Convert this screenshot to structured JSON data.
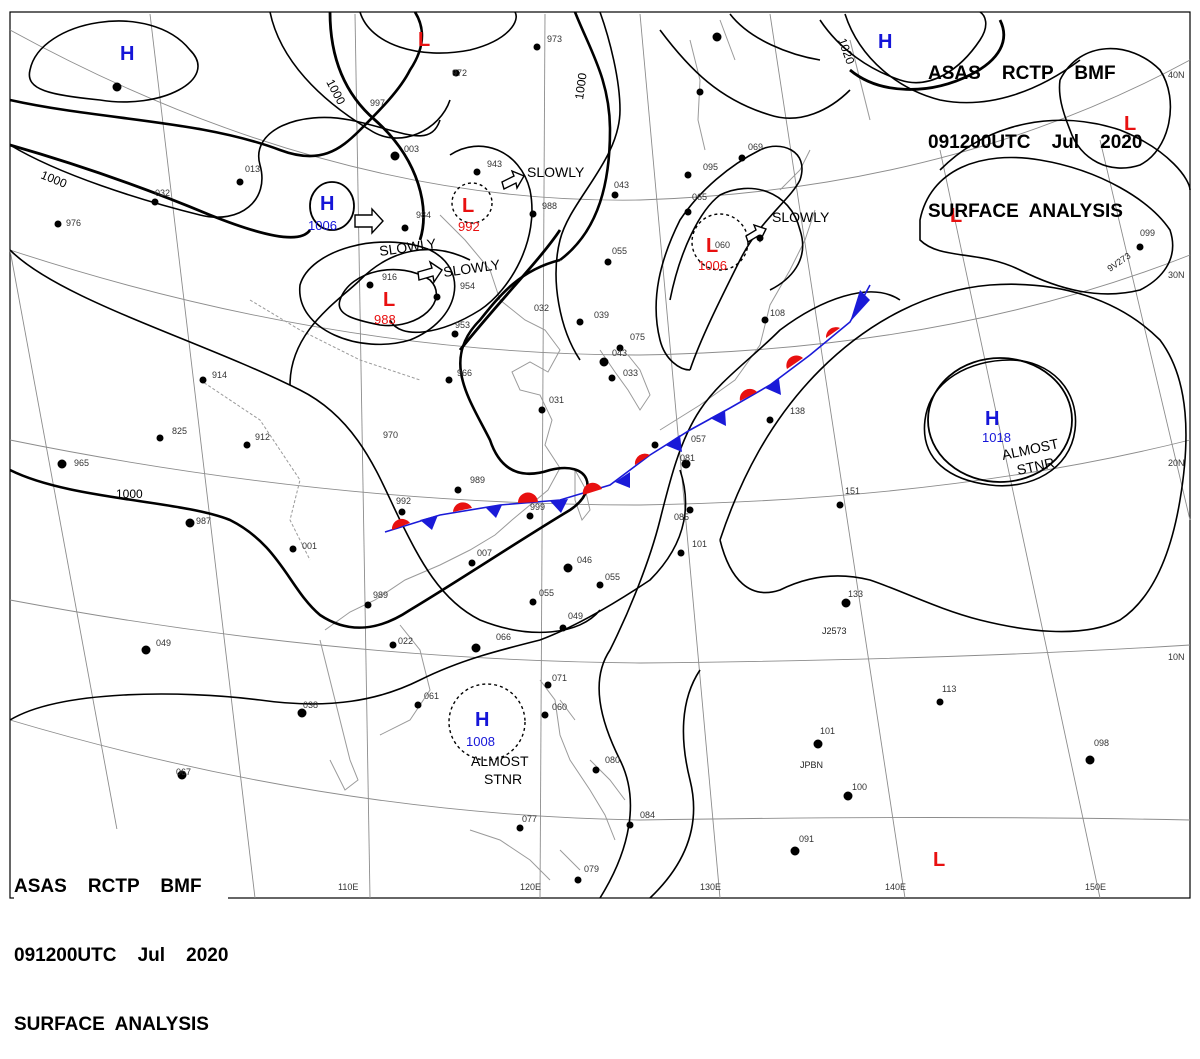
{
  "header_top": {
    "line1": "ASAS    RCTP    BMF",
    "line2": "091200UTC    Jul    2020",
    "line3": "SURFACE  ANALYSIS"
  },
  "header_bottom": {
    "line1": "ASAS    RCTP    BMF",
    "line2": "091200UTC    Jul    2020",
    "line3": "SURFACE  ANALYSIS"
  },
  "colors": {
    "high": "#1515d8",
    "low": "#e81010",
    "isobar": "#000000",
    "grid": "#888888",
    "coast": "#9a9a9a"
  },
  "longitude_labels": [
    "110E",
    "120E",
    "130E",
    "140E",
    "150E"
  ],
  "latitude_labels": [
    "40N",
    "30N",
    "20N",
    "10N"
  ],
  "isobar_labels": [
    "1000",
    "1000",
    "1000",
    "1000",
    "1020"
  ],
  "pressure_centers": [
    {
      "type": "H",
      "pressure": ""
    },
    {
      "type": "H",
      "pressure": "1006"
    },
    {
      "type": "H",
      "pressure": ""
    },
    {
      "type": "H",
      "pressure": "1018"
    },
    {
      "type": "H",
      "pressure": "1008"
    },
    {
      "type": "L",
      "pressure": ""
    },
    {
      "type": "L",
      "pressure": "992"
    },
    {
      "type": "L",
      "pressure": "988"
    },
    {
      "type": "L",
      "pressure": "1006"
    },
    {
      "type": "L",
      "pressure": ""
    },
    {
      "type": "L",
      "pressure": ""
    },
    {
      "type": "L",
      "pressure": ""
    }
  ],
  "movement_labels": [
    "SLOWLY",
    "SLOWLY",
    "SLOWLY",
    "SLOWLY",
    "ALMOST",
    "STNR",
    "ALMOST",
    "STNR"
  ],
  "station_values": [
    "973",
    "972",
    "997",
    "003",
    "943",
    "988",
    "043",
    "095",
    "065",
    "069",
    "013",
    "032",
    "976",
    "984",
    "916",
    "954",
    "055",
    "060",
    "032",
    "039",
    "075",
    "043",
    "033",
    "953",
    "966",
    "031",
    "914",
    "825",
    "912",
    "970",
    "965",
    "989",
    "999",
    "151",
    "987",
    "992",
    "007",
    "001",
    "046",
    "055",
    "101",
    "133",
    "989",
    "055",
    "049",
    "022",
    "066",
    "071",
    "060",
    "061",
    "038",
    "080",
    "084",
    "049",
    "077",
    "079",
    "067",
    "113",
    "101",
    "100",
    "098",
    "091",
    "138",
    "099",
    "081",
    "085",
    "057",
    "108"
  ],
  "station_codes": [
    "JPBN",
    "J2573",
    "9V273"
  ]
}
